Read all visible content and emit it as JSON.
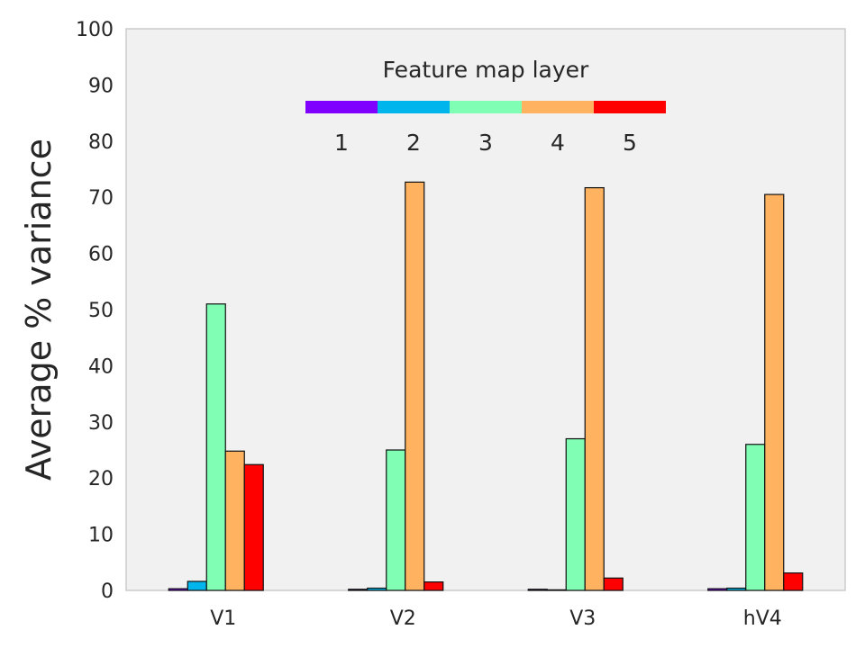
{
  "chart_data": {
    "type": "bar",
    "title": "",
    "xlabel": "",
    "ylabel": "Average % variance",
    "ylim": [
      0,
      100
    ],
    "yticks": [
      0,
      10,
      20,
      30,
      40,
      50,
      60,
      70,
      80,
      90,
      100
    ],
    "categories": [
      "V1",
      "V2",
      "V3",
      "hV4"
    ],
    "series": [
      {
        "name": "1",
        "color": "#8000ff",
        "values": [
          0.3,
          0.2,
          0.2,
          0.3
        ]
      },
      {
        "name": "2",
        "color": "#00b5eb",
        "values": [
          1.6,
          0.4,
          0.1,
          0.4
        ]
      },
      {
        "name": "3",
        "color": "#80ffb4",
        "values": [
          51,
          25,
          27,
          26
        ]
      },
      {
        "name": "4",
        "color": "#ffb360",
        "values": [
          24.8,
          72.7,
          71.7,
          70.5
        ]
      },
      {
        "name": "5",
        "color": "#ff0000",
        "values": [
          22.4,
          1.5,
          2.2,
          3.1
        ]
      }
    ],
    "legend": {
      "title": "Feature map layer",
      "placement": "top-center",
      "style": "colorbar"
    },
    "grid": false,
    "background": "#f1f1f1"
  }
}
